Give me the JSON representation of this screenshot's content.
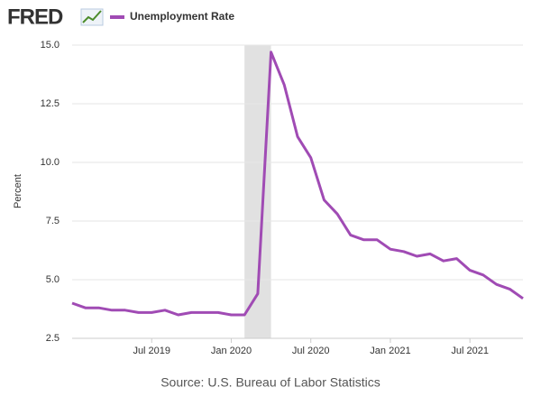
{
  "chart_data": {
    "type": "line",
    "logo": "FRED",
    "source": "Source: U.S. Bureau of Labor Statistics",
    "ylabel": "Percent",
    "x": [
      "2019-01",
      "2019-02",
      "2019-03",
      "2019-04",
      "2019-05",
      "2019-06",
      "2019-07",
      "2019-08",
      "2019-09",
      "2019-10",
      "2019-11",
      "2019-12",
      "2020-01",
      "2020-02",
      "2020-03",
      "2020-04",
      "2020-05",
      "2020-06",
      "2020-07",
      "2020-08",
      "2020-09",
      "2020-10",
      "2020-11",
      "2020-12",
      "2021-01",
      "2021-02",
      "2021-03",
      "2021-04",
      "2021-05",
      "2021-06",
      "2021-07",
      "2021-08",
      "2021-09",
      "2021-10",
      "2021-11"
    ],
    "series": [
      {
        "name": "Unemployment Rate",
        "color": "#a04bb4",
        "values": [
          4.0,
          3.8,
          3.8,
          3.7,
          3.7,
          3.6,
          3.6,
          3.7,
          3.5,
          3.6,
          3.6,
          3.6,
          3.5,
          3.5,
          4.4,
          14.7,
          13.3,
          11.1,
          10.2,
          8.4,
          7.8,
          6.9,
          6.7,
          6.7,
          6.3,
          6.2,
          6.0,
          6.1,
          5.8,
          5.9,
          5.4,
          5.2,
          4.8,
          4.6,
          4.2
        ]
      }
    ],
    "xlim": [
      "2019-01",
      "2021-11"
    ],
    "xticks": [
      {
        "value": "2019-07",
        "label": "Jul 2019"
      },
      {
        "value": "2020-01",
        "label": "Jan 2020"
      },
      {
        "value": "2020-07",
        "label": "Jul 2020"
      },
      {
        "value": "2021-01",
        "label": "Jan 2021"
      },
      {
        "value": "2021-07",
        "label": "Jul 2021"
      }
    ],
    "ylim": [
      2.5,
      15
    ],
    "yticks": [
      2.5,
      {
        "value": 5,
        "label": "5.0"
      },
      7.5,
      {
        "value": 10,
        "label": "10.0"
      },
      12.5,
      {
        "value": 15,
        "label": "15.0"
      }
    ],
    "grid": true,
    "recession": [
      "2020-02",
      "2020-04"
    ]
  }
}
